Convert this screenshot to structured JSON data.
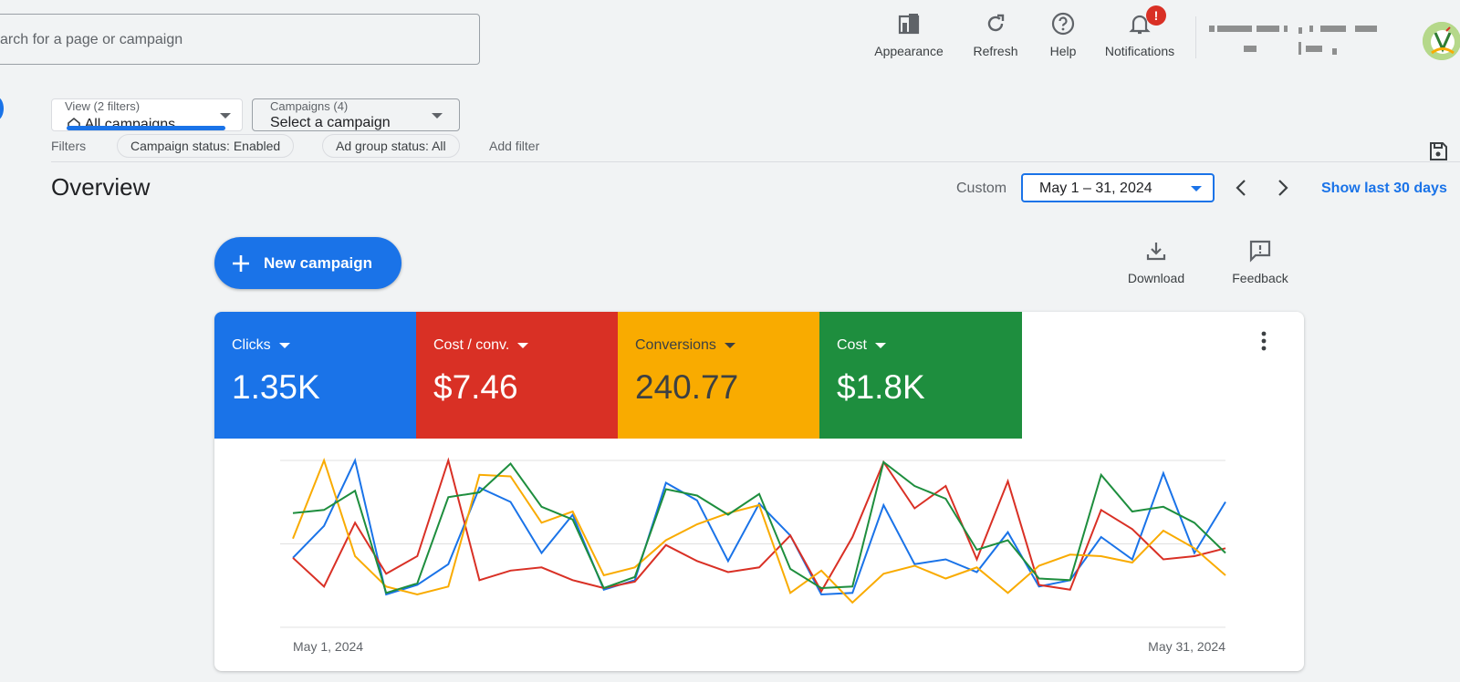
{
  "search": {
    "placeholder": "arch for a page or campaign"
  },
  "top_actions": [
    {
      "label": "Appearance",
      "icon": "appearance-icon"
    },
    {
      "label": "Refresh",
      "icon": "refresh-icon"
    },
    {
      "label": "Help",
      "icon": "help-icon"
    },
    {
      "label": "Notifications",
      "icon": "bell-icon",
      "badge": "!"
    }
  ],
  "view_select": {
    "label": "View (2 filters)",
    "value": "All campaigns"
  },
  "campaign_select": {
    "label": "Campaigns (4)",
    "value": "Select a campaign"
  },
  "filters": {
    "label": "Filters",
    "chips": [
      "Campaign status: Enabled",
      "Ad group status: All"
    ],
    "add_label": "Add filter"
  },
  "overview": {
    "title": "Overview",
    "custom_label": "Custom",
    "date_range": "May 1 – 31, 2024",
    "show_last": "Show last 30 days"
  },
  "new_campaign": {
    "label": "New campaign"
  },
  "utility": {
    "download": "Download",
    "feedback": "Feedback"
  },
  "metrics": [
    {
      "label": "Clicks",
      "value": "1.35K",
      "color": "#1a73e8"
    },
    {
      "label": "Cost / conv.",
      "value": "$7.46",
      "color": "#d93025"
    },
    {
      "label": "Conversions",
      "value": "240.77",
      "color": "#f9ab00"
    },
    {
      "label": "Cost",
      "value": "$1.8K",
      "color": "#1e8e3e"
    }
  ],
  "chart_data": {
    "type": "line",
    "x_start_label": "May 1, 2024",
    "x_end_label": "May 31, 2024",
    "grid": true,
    "normalized": true,
    "series": [
      {
        "color": "#1a73e8",
        "values": [
          0.39,
          0.59,
          1.0,
          0.16,
          0.22,
          0.35,
          0.83,
          0.74,
          0.42,
          0.66,
          0.19,
          0.25,
          0.86,
          0.75,
          0.37,
          0.73,
          0.53,
          0.16,
          0.17,
          0.72,
          0.35,
          0.38,
          0.3,
          0.55,
          0.21,
          0.25,
          0.52,
          0.38,
          0.92,
          0.42,
          0.74
        ]
      },
      {
        "color": "#d93025",
        "values": [
          0.39,
          0.21,
          0.61,
          0.29,
          0.4,
          1.0,
          0.25,
          0.31,
          0.33,
          0.25,
          0.2,
          0.24,
          0.47,
          0.37,
          0.3,
          0.33,
          0.53,
          0.18,
          0.52,
          0.99,
          0.7,
          0.84,
          0.38,
          0.87,
          0.22,
          0.19,
          0.69,
          0.57,
          0.38,
          0.4,
          0.45
        ]
      },
      {
        "color": "#f9ab00",
        "values": [
          0.51,
          1.0,
          0.4,
          0.21,
          0.16,
          0.21,
          0.91,
          0.9,
          0.61,
          0.68,
          0.28,
          0.33,
          0.5,
          0.6,
          0.67,
          0.72,
          0.17,
          0.31,
          0.11,
          0.29,
          0.34,
          0.26,
          0.33,
          0.17,
          0.34,
          0.41,
          0.4,
          0.36,
          0.56,
          0.45,
          0.28
        ]
      },
      {
        "color": "#1e8e3e",
        "values": [
          0.67,
          0.69,
          0.81,
          0.17,
          0.23,
          0.77,
          0.8,
          0.98,
          0.71,
          0.63,
          0.2,
          0.27,
          0.82,
          0.78,
          0.66,
          0.79,
          0.32,
          0.2,
          0.21,
          0.99,
          0.84,
          0.76,
          0.44,
          0.5,
          0.26,
          0.25,
          0.91,
          0.68,
          0.71,
          0.61,
          0.42
        ]
      }
    ]
  }
}
